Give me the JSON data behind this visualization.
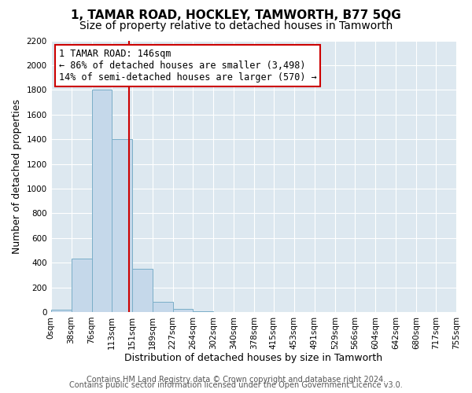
{
  "title": "1, TAMAR ROAD, HOCKLEY, TAMWORTH, B77 5QG",
  "subtitle": "Size of property relative to detached houses in Tamworth",
  "xlabel": "Distribution of detached houses by size in Tamworth",
  "ylabel": "Number of detached properties",
  "bin_edges": [
    0,
    38,
    76,
    113,
    151,
    189,
    227,
    264,
    302,
    340,
    378,
    415,
    453,
    491,
    529,
    566,
    604,
    642,
    680,
    717,
    755
  ],
  "bar_heights": [
    20,
    430,
    1800,
    1400,
    350,
    80,
    25,
    5,
    0,
    0,
    0,
    0,
    0,
    0,
    0,
    0,
    0,
    0,
    0,
    0
  ],
  "bar_color": "#c5d8ea",
  "bar_edgecolor": "#7aaec8",
  "property_size": 146,
  "vline_color": "#cc0000",
  "annotation_line1": "1 TAMAR ROAD: 146sqm",
  "annotation_line2": "← 86% of detached houses are smaller (3,498)",
  "annotation_line3": "14% of semi-detached houses are larger (570) →",
  "annotation_box_edgecolor": "#cc0000",
  "annotation_box_facecolor": "#ffffff",
  "ylim": [
    0,
    2200
  ],
  "yticks": [
    0,
    200,
    400,
    600,
    800,
    1000,
    1200,
    1400,
    1600,
    1800,
    2000,
    2200
  ],
  "xtick_labels": [
    "0sqm",
    "38sqm",
    "76sqm",
    "113sqm",
    "151sqm",
    "189sqm",
    "227sqm",
    "264sqm",
    "302sqm",
    "340sqm",
    "378sqm",
    "415sqm",
    "453sqm",
    "491sqm",
    "529sqm",
    "566sqm",
    "604sqm",
    "642sqm",
    "680sqm",
    "717sqm",
    "755sqm"
  ],
  "footer_line1": "Contains HM Land Registry data © Crown copyright and database right 2024.",
  "footer_line2": "Contains public sector information licensed under the Open Government Licence v3.0.",
  "background_color": "#ffffff",
  "plot_background_color": "#dde8f0",
  "grid_color": "#ffffff",
  "title_fontsize": 11,
  "subtitle_fontsize": 10,
  "axis_label_fontsize": 9,
  "tick_fontsize": 7.5,
  "footer_fontsize": 7
}
